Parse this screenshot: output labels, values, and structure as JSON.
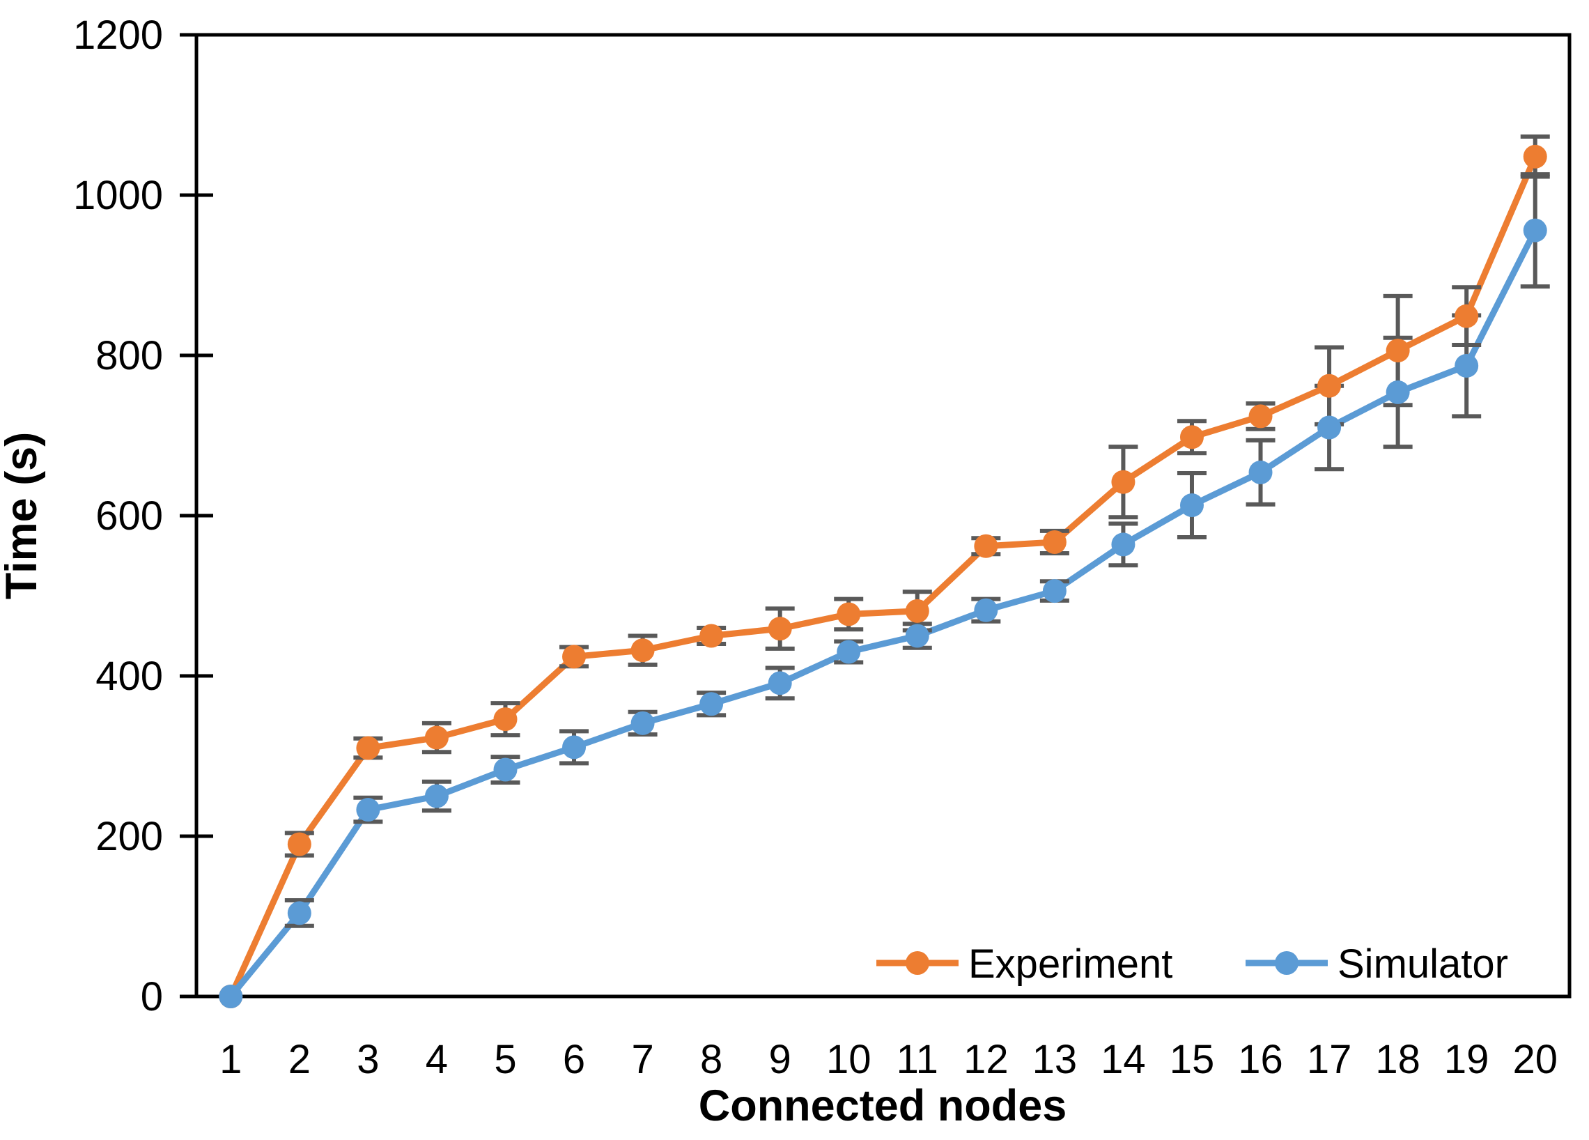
{
  "chart_data": {
    "type": "line",
    "title": "",
    "xlabel": "Connected nodes",
    "ylabel": "Time (s)",
    "categories": [
      1,
      2,
      3,
      4,
      5,
      6,
      7,
      8,
      9,
      10,
      11,
      12,
      13,
      14,
      15,
      16,
      17,
      18,
      19,
      20
    ],
    "ylim": [
      0,
      1200
    ],
    "yticks": [
      0,
      200,
      400,
      600,
      800,
      1000,
      1200
    ],
    "grid": false,
    "legend_position": "inside-bottom-right",
    "error_bar_color": "#595959",
    "axis_color": "#000000",
    "series": [
      {
        "name": "Experiment",
        "color": "#ED7D31",
        "values": [
          0,
          190,
          310,
          323,
          346,
          424,
          432,
          450,
          459,
          477,
          481,
          562,
          567,
          642,
          698,
          724,
          762,
          806,
          849,
          1048
        ],
        "errors": [
          0,
          14,
          12,
          18,
          20,
          12,
          18,
          10,
          25,
          19,
          24,
          10,
          14,
          44,
          20,
          16,
          48,
          68,
          36,
          25
        ]
      },
      {
        "name": "Simulator",
        "color": "#5B9BD5",
        "values": [
          0,
          104,
          233,
          250,
          283,
          311,
          341,
          365,
          391,
          430,
          450,
          482,
          506,
          564,
          613,
          654,
          710,
          754,
          787,
          956
        ],
        "errors": [
          0,
          16,
          15,
          18,
          16,
          20,
          14,
          14,
          19,
          13,
          15,
          14,
          12,
          26,
          40,
          40,
          52,
          68,
          63,
          70
        ]
      }
    ]
  }
}
